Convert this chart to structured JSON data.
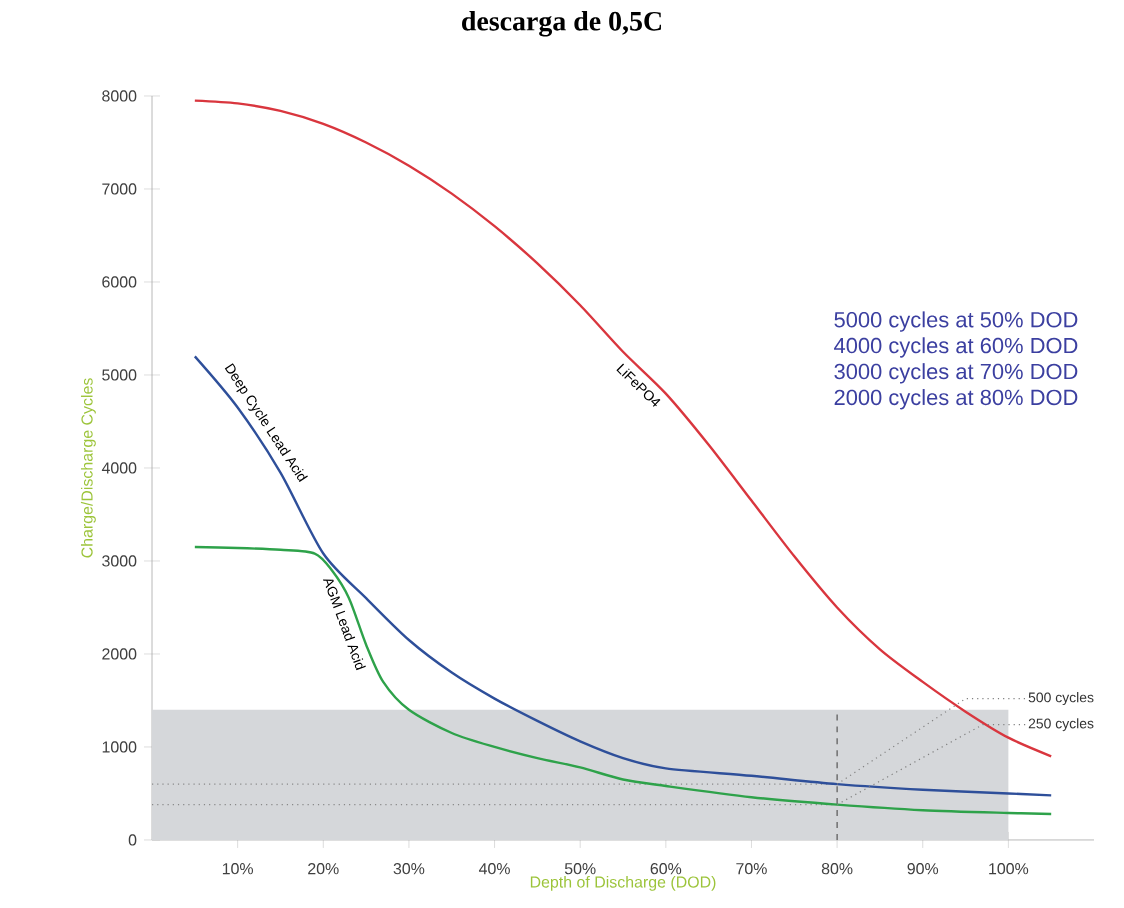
{
  "chart_data": {
    "type": "line",
    "title": "descarga de 0,5C",
    "xlabel": "Depth of Discharge (DOD)",
    "ylabel": "Charge/Discharge Cycles",
    "xlim": [
      0,
      110
    ],
    "ylim": [
      0,
      8000
    ],
    "xticks": [
      {
        "value": 10,
        "label": "10%"
      },
      {
        "value": 20,
        "label": "20%"
      },
      {
        "value": 30,
        "label": "30%"
      },
      {
        "value": 40,
        "label": "40%"
      },
      {
        "value": 50,
        "label": "50%"
      },
      {
        "value": 60,
        "label": "60%"
      },
      {
        "value": 70,
        "label": "70%"
      },
      {
        "value": 80,
        "label": "80%"
      },
      {
        "value": 90,
        "label": "90%"
      },
      {
        "value": 100,
        "label": "100%"
      }
    ],
    "yticks": [
      0,
      1000,
      2000,
      3000,
      4000,
      5000,
      6000,
      7000,
      8000
    ],
    "series": [
      {
        "name": "LiFePO4",
        "color": "#d9363e",
        "x": [
          5,
          10,
          15,
          20,
          25,
          30,
          35,
          40,
          45,
          50,
          55,
          60,
          65,
          70,
          75,
          80,
          85,
          90,
          95,
          100,
          105
        ],
        "values": [
          7950,
          7920,
          7840,
          7700,
          7500,
          7250,
          6950,
          6600,
          6200,
          5750,
          5250,
          4800,
          4250,
          3650,
          3050,
          2500,
          2050,
          1700,
          1380,
          1100,
          900
        ]
      },
      {
        "name": "Deep Cycle Lead Acid",
        "color": "#2e4f9a",
        "x": [
          5,
          10,
          15,
          20,
          25,
          30,
          35,
          40,
          45,
          50,
          55,
          60,
          70,
          80,
          90,
          100,
          105
        ],
        "values": [
          5200,
          4650,
          3950,
          3080,
          2600,
          2150,
          1800,
          1520,
          1280,
          1060,
          880,
          770,
          690,
          600,
          540,
          500,
          480
        ]
      },
      {
        "name": "AGM Lead Acid",
        "color": "#2ea24a",
        "x": [
          5,
          10,
          15,
          19,
          21,
          23,
          25,
          27,
          30,
          35,
          40,
          45,
          50,
          55,
          60,
          70,
          80,
          90,
          100,
          105
        ],
        "values": [
          3150,
          3140,
          3120,
          3080,
          2900,
          2600,
          2100,
          1700,
          1400,
          1150,
          1000,
          880,
          780,
          650,
          580,
          460,
          380,
          320,
          290,
          280
        ]
      }
    ],
    "bands": [
      {
        "axis": "y",
        "from": 0,
        "to": 1400,
        "color": "#d5d7da"
      }
    ],
    "ref_lines": [
      {
        "axis": "y",
        "value": 600,
        "line_style": "dotted",
        "color": "#888888"
      },
      {
        "axis": "y",
        "value": 380,
        "line_style": "dotted",
        "color": "#888888"
      },
      {
        "axis": "x",
        "value": 80,
        "line_style": "dashed",
        "color": "#555555"
      }
    ],
    "annotations": [
      "5000 cycles at 50% DOD",
      "4000 cycles at 60% DOD",
      "3000 cycles at 70% DOD",
      "2000 cycles at 80% DOD",
      {
        "text": "500 cycles",
        "x": 80,
        "y": 600
      },
      {
        "text": "250 cycles",
        "x": 80,
        "y": 380
      }
    ],
    "grid": false,
    "marker": "none",
    "line_style": "solid"
  }
}
